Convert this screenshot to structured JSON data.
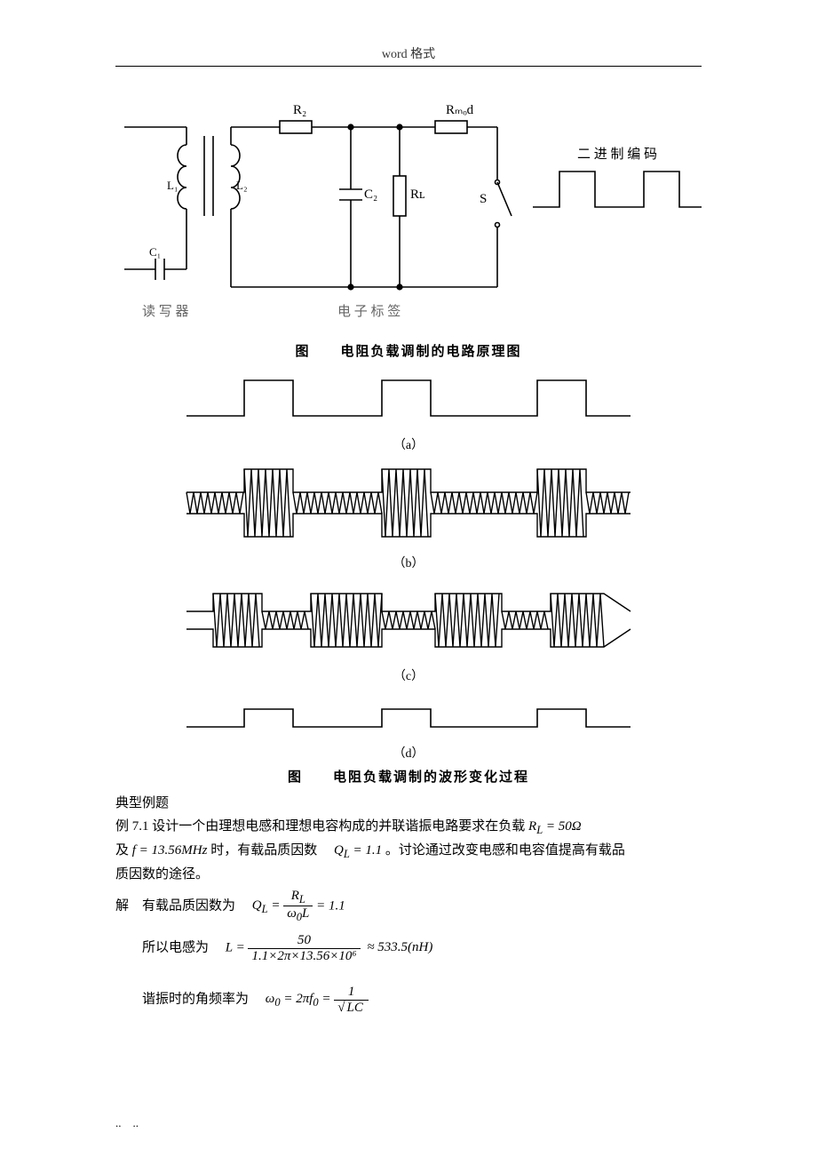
{
  "header": "word 格式",
  "circuit": {
    "labels": {
      "R2": "R₂",
      "Rmod": "Rₘₒd",
      "C2": "C₂",
      "RL": "Rʟ",
      "L1": "L₁",
      "L2": "L₂",
      "C1": "C₁",
      "S": "S",
      "reader": "读 写 器",
      "tag": "电 子 标 签",
      "binary": "二 进 制 编 码"
    },
    "caption": "图　　电阻负载调制的电路原理图",
    "stroke": "#000000",
    "bg": "#ffffff"
  },
  "waveforms": {
    "caption": "图　　电阻负载调制的波形变化过程",
    "sub": {
      "a": "（a）",
      "b": "（b）",
      "c": "（c）",
      "d": "（d）"
    },
    "stroke": "#000000"
  },
  "example": {
    "heading": "典型例题",
    "problem_line1_prefix": "例 7.1 设计一个由理想电感和理想电容构成的并联谐振电路要求在负载 ",
    "problem_RL": "R_L = 50Ω",
    "problem_line2_prefix": "及 ",
    "problem_f": "f = 13.56MHz",
    "problem_line2_mid": " 时，有载品质因数　",
    "problem_QL": "Q_L = 1.1",
    "problem_line2_tail": " 。讨论通过改变电感和电容值提高有载品",
    "problem_line3": "质因数的途径。",
    "solution_lead": "解　有载品质因数为　",
    "QL_left": "Q_L =",
    "QL_num": "R_L",
    "QL_den": "ω₀L",
    "QL_eq": "= 1.1",
    "L_lead": "所以电感为　",
    "L_left": "L =",
    "L_num": "50",
    "L_den": "1.1×2π×13.56×10⁶",
    "L_result": "≈ 533.5(nH)",
    "omega_lead": "谐振时的角频率为　",
    "omega_left": "ω₀ = 2πf₀ =",
    "omega_num": "1",
    "omega_den": "√(LC)"
  },
  "footer": "..　.."
}
